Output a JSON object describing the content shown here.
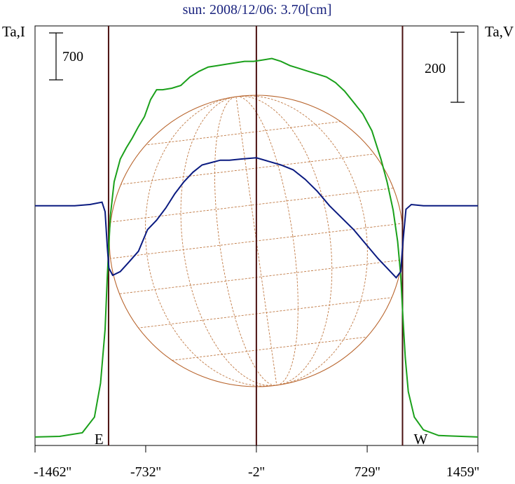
{
  "chart_data": {
    "type": "line",
    "title": "sun: 2008/12/06: 3.70[cm]",
    "ylabel_left": "Ta,I",
    "ylabel_right": "Ta,V",
    "scale_left": {
      "label": "700",
      "value": 700
    },
    "scale_right": {
      "label": "200",
      "value": 200
    },
    "x_ticks": [
      {
        "label": "-1462''",
        "value": -1462
      },
      {
        "label": "-732''",
        "value": -732
      },
      {
        "label": "-2''",
        "value": -2
      },
      {
        "label": "729''",
        "value": 729
      },
      {
        "label": "1459''",
        "value": 1459
      }
    ],
    "xlim": [
      -1462,
      1459
    ],
    "limb_markers": [
      {
        "label": "E",
        "value": -977
      },
      {
        "label": "",
        "value": -2
      },
      {
        "label": "W",
        "value": 962
      }
    ],
    "colors": {
      "intensity": "#1aa01a",
      "polarization": "#0a1a80",
      "disk": "#b8642c",
      "grid": "#c07a45",
      "markers": "#4a1010"
    },
    "series": [
      {
        "name": "Ta,I",
        "points": [
          [
            -1462,
            0
          ],
          [
            -1300,
            4
          ],
          [
            -1150,
            30
          ],
          [
            -1070,
            140
          ],
          [
            -1030,
            380
          ],
          [
            -1000,
            760
          ],
          [
            -985,
            1140
          ],
          [
            -965,
            1560
          ],
          [
            -940,
            1800
          ],
          [
            -900,
            1960
          ],
          [
            -860,
            2040
          ],
          [
            -820,
            2110
          ],
          [
            -780,
            2190
          ],
          [
            -740,
            2260
          ],
          [
            -700,
            2380
          ],
          [
            -660,
            2450
          ],
          [
            -620,
            2450
          ],
          [
            -560,
            2460
          ],
          [
            -500,
            2480
          ],
          [
            -440,
            2540
          ],
          [
            -380,
            2580
          ],
          [
            -320,
            2610
          ],
          [
            -260,
            2620
          ],
          [
            -200,
            2630
          ],
          [
            -140,
            2640
          ],
          [
            -80,
            2650
          ],
          [
            -20,
            2650
          ],
          [
            40,
            2660
          ],
          [
            100,
            2670
          ],
          [
            160,
            2650
          ],
          [
            220,
            2620
          ],
          [
            280,
            2600
          ],
          [
            340,
            2580
          ],
          [
            400,
            2560
          ],
          [
            460,
            2540
          ],
          [
            520,
            2500
          ],
          [
            580,
            2440
          ],
          [
            640,
            2360
          ],
          [
            700,
            2280
          ],
          [
            760,
            2160
          ],
          [
            820,
            1960
          ],
          [
            860,
            1800
          ],
          [
            900,
            1600
          ],
          [
            930,
            1380
          ],
          [
            950,
            1140
          ],
          [
            965,
            840
          ],
          [
            980,
            560
          ],
          [
            1000,
            320
          ],
          [
            1040,
            140
          ],
          [
            1100,
            50
          ],
          [
            1200,
            10
          ],
          [
            1459,
            0
          ]
        ]
      },
      {
        "name": "Ta,V",
        "points": [
          [
            -1462,
            0
          ],
          [
            -1200,
            0
          ],
          [
            -1100,
            1
          ],
          [
            -1020,
            3
          ],
          [
            -1000,
            -5
          ],
          [
            -985,
            -35
          ],
          [
            -975,
            -52
          ],
          [
            -950,
            -58
          ],
          [
            -900,
            -55
          ],
          [
            -850,
            -48
          ],
          [
            -780,
            -38
          ],
          [
            -720,
            -20
          ],
          [
            -660,
            -12
          ],
          [
            -600,
            -2
          ],
          [
            -540,
            10
          ],
          [
            -480,
            20
          ],
          [
            -420,
            28
          ],
          [
            -360,
            34
          ],
          [
            -300,
            36
          ],
          [
            -240,
            38
          ],
          [
            -180,
            38
          ],
          [
            -100,
            39
          ],
          [
            -2,
            40
          ],
          [
            80,
            37
          ],
          [
            160,
            34
          ],
          [
            240,
            30
          ],
          [
            320,
            22
          ],
          [
            400,
            12
          ],
          [
            480,
            0
          ],
          [
            560,
            -10
          ],
          [
            640,
            -20
          ],
          [
            720,
            -32
          ],
          [
            800,
            -44
          ],
          [
            860,
            -52
          ],
          [
            920,
            -60
          ],
          [
            950,
            -55
          ],
          [
            965,
            -30
          ],
          [
            985,
            -3
          ],
          [
            1020,
            1
          ],
          [
            1100,
            0
          ],
          [
            1459,
            0
          ]
        ]
      }
    ],
    "ylim_left": [
      -60,
      2900
    ],
    "ylim_right": [
      -200,
      150
    ]
  }
}
